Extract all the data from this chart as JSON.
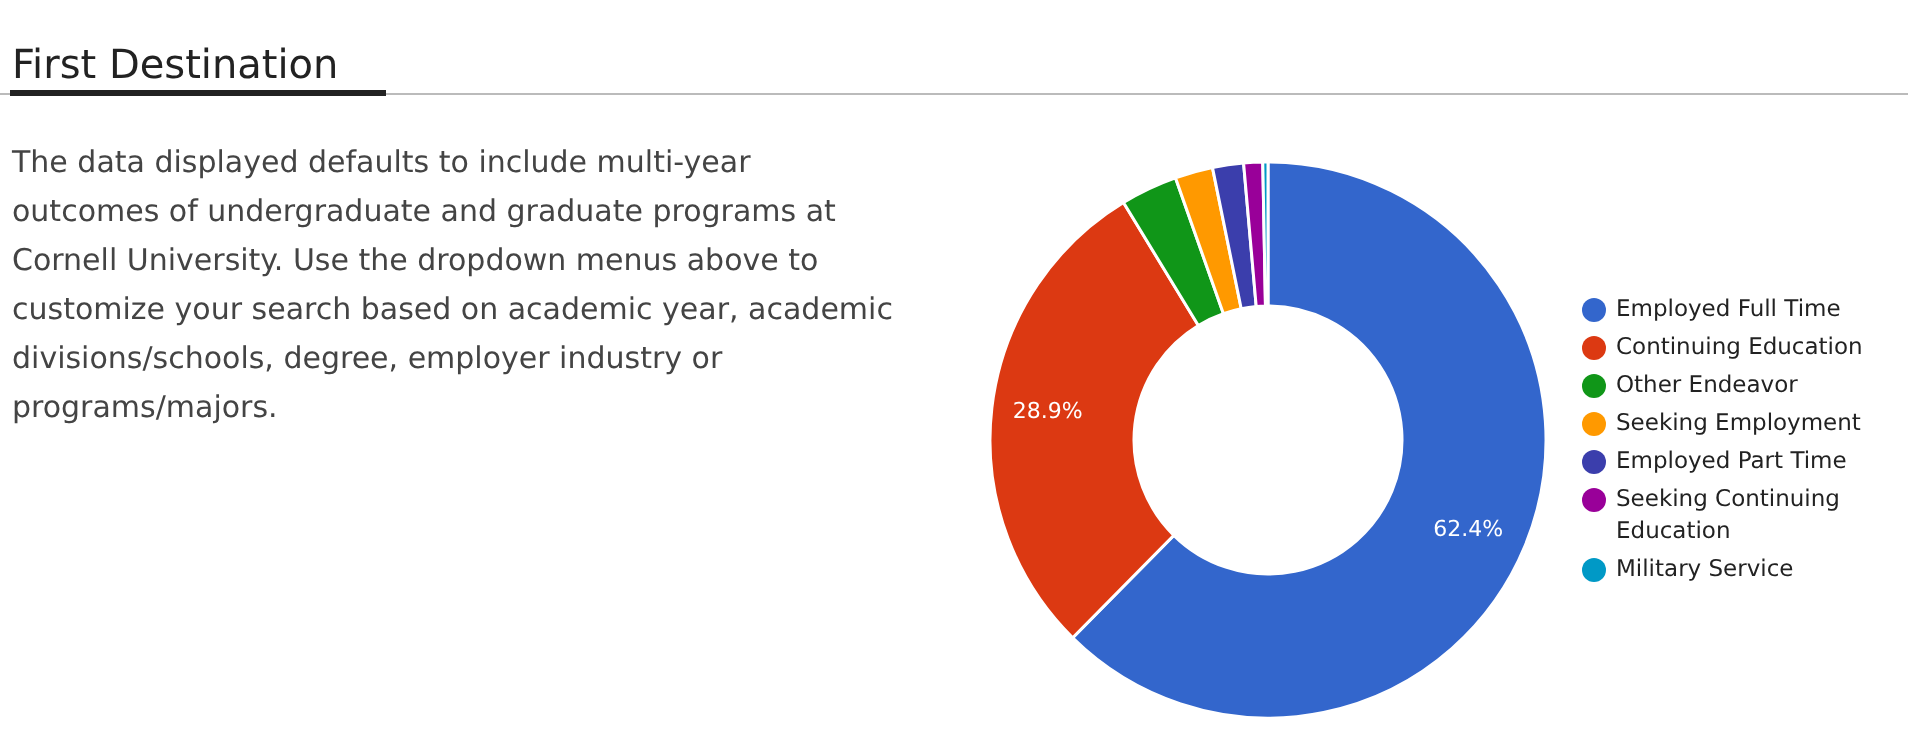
{
  "chart_data": {
    "type": "donut",
    "title": "First Destination",
    "annotations": [
      "The data displayed defaults to include multi-year outcomes of undergraduate and graduate programs at Cornell University. Use the dropdown menus above to customize your search based on academic year, academic divisions/schools, degree, employer industry or programs/majors."
    ],
    "categories": [
      "Employed Full Time",
      "Continuing Education",
      "Other Endeavor",
      "Seeking Employment",
      "Employed Part Time",
      "Seeking Continuing Education",
      "Military Service"
    ],
    "values": [
      62.4,
      28.9,
      3.3,
      2.2,
      1.8,
      1.1,
      0.3
    ],
    "value_labels": [
      "62.4%",
      "28.9%",
      null,
      null,
      null,
      null,
      null
    ],
    "colors": [
      "#3366cc",
      "#dc3912",
      "#109618",
      "#ff9900",
      "#3b3eac",
      "#990099",
      "#0099c6"
    ],
    "legend": "right"
  }
}
